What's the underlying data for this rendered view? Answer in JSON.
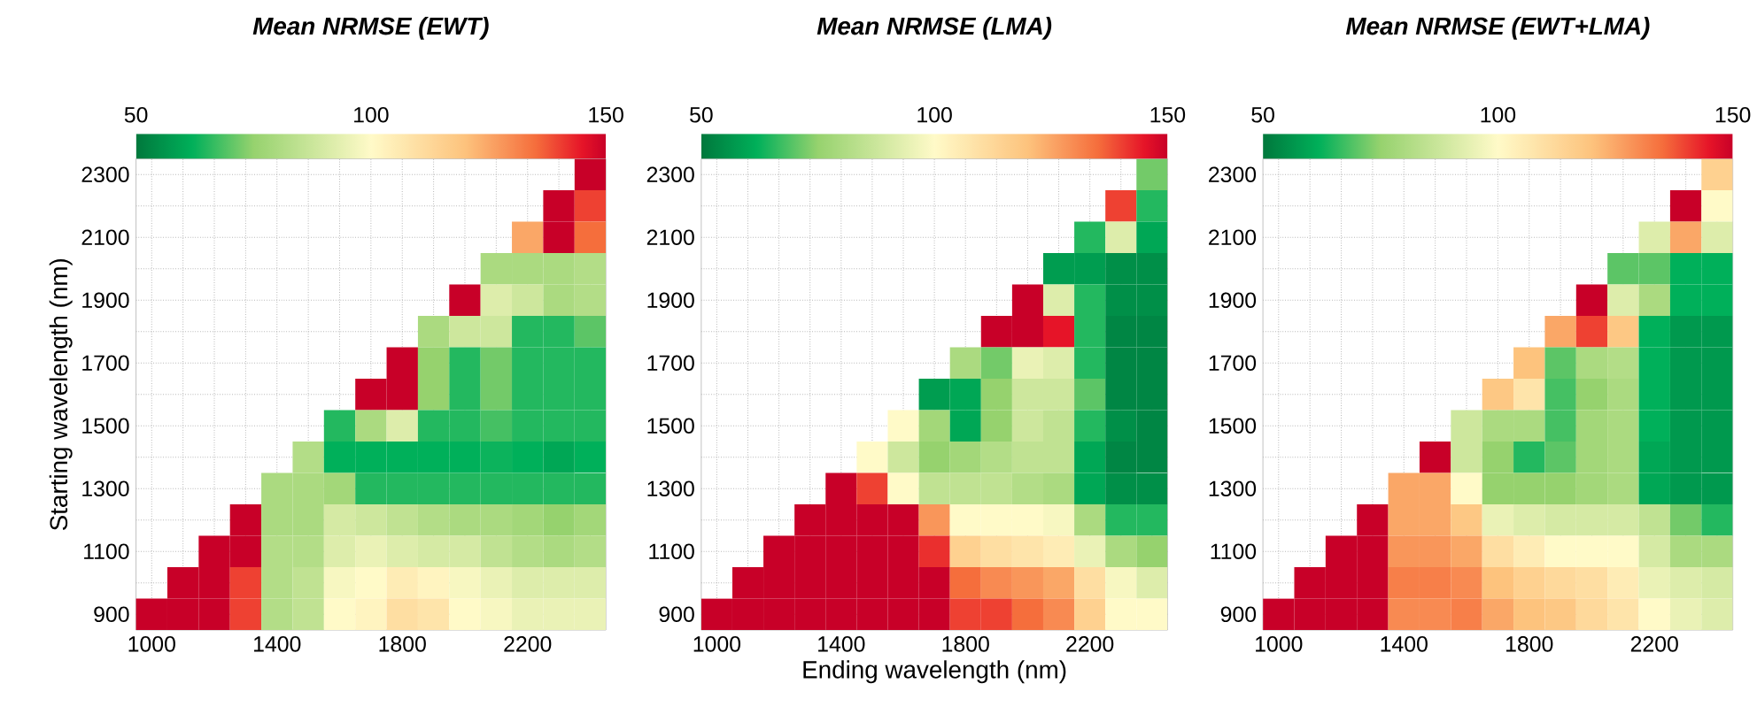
{
  "chart_data": [
    {
      "type": "heatmap",
      "title": "Mean NRMSE (EWT)",
      "ylabel": "Starting wavelength (nm)",
      "grid": true,
      "clim": [
        50,
        150
      ],
      "cticks": [
        50,
        100,
        150
      ],
      "categories": [
        "1000",
        null,
        null,
        null,
        "1400",
        null,
        null,
        null,
        "1800",
        null,
        null,
        null,
        "2200",
        null,
        null
      ],
      "y_categories": [
        "2300",
        null,
        "2100",
        null,
        "1900",
        null,
        "1700",
        null,
        "1500",
        null,
        "1300",
        null,
        "1100",
        null,
        "900"
      ],
      "cells": [
        [
          null,
          null,
          null,
          null,
          null,
          null,
          null,
          null,
          null,
          null,
          null,
          null,
          null,
          null,
          150
        ],
        [
          null,
          null,
          null,
          null,
          null,
          null,
          null,
          null,
          null,
          null,
          null,
          null,
          null,
          150,
          140
        ],
        [
          null,
          null,
          null,
          null,
          null,
          null,
          null,
          null,
          null,
          null,
          null,
          null,
          125,
          150,
          135
        ],
        [
          null,
          null,
          null,
          null,
          null,
          null,
          null,
          null,
          null,
          null,
          null,
          80,
          80,
          80,
          82
        ],
        [
          null,
          null,
          null,
          null,
          null,
          null,
          null,
          null,
          null,
          null,
          150,
          92,
          88,
          80,
          82
        ],
        [
          null,
          null,
          null,
          null,
          null,
          null,
          null,
          null,
          null,
          80,
          88,
          88,
          65,
          65,
          70
        ],
        [
          null,
          null,
          null,
          null,
          null,
          null,
          null,
          null,
          150,
          75,
          65,
          72,
          65,
          65,
          65
        ],
        [
          null,
          null,
          null,
          null,
          null,
          null,
          null,
          150,
          150,
          75,
          65,
          72,
          65,
          65,
          65
        ],
        [
          null,
          null,
          null,
          null,
          null,
          null,
          65,
          80,
          92,
          65,
          65,
          68,
          65,
          65,
          65
        ],
        [
          null,
          null,
          null,
          null,
          null,
          82,
          62,
          62,
          62,
          62,
          62,
          63,
          62,
          60,
          62
        ],
        [
          null,
          null,
          null,
          null,
          80,
          80,
          78,
          65,
          65,
          65,
          65,
          65,
          65,
          65,
          65
        ],
        [
          null,
          null,
          null,
          150,
          80,
          80,
          90,
          88,
          85,
          82,
          80,
          80,
          78,
          75,
          78
        ],
        [
          null,
          null,
          150,
          150,
          82,
          82,
          92,
          95,
          92,
          90,
          90,
          85,
          82,
          80,
          82
        ],
        [
          null,
          150,
          150,
          140,
          82,
          85,
          98,
          100,
          105,
          102,
          98,
          95,
          92,
          92,
          92
        ],
        [
          150,
          150,
          150,
          140,
          82,
          85,
          100,
          102,
          110,
          108,
          100,
          98,
          95,
          95,
          95
        ]
      ]
    },
    {
      "type": "heatmap",
      "title": "Mean NRMSE (LMA)",
      "xlabel": "Ending wavelength (nm)",
      "grid": true,
      "clim": [
        50,
        150
      ],
      "cticks": [
        50,
        100,
        150
      ],
      "categories": [
        "1000",
        null,
        null,
        null,
        "1400",
        null,
        null,
        null,
        "1800",
        null,
        null,
        null,
        "2200",
        null,
        null
      ],
      "y_categories": [
        "2300",
        null,
        "2100",
        null,
        "1900",
        null,
        "1700",
        null,
        "1500",
        null,
        "1300",
        null,
        "1100",
        null,
        "900"
      ],
      "cells": [
        [
          null,
          null,
          null,
          null,
          null,
          null,
          null,
          null,
          null,
          null,
          null,
          null,
          null,
          null,
          72
        ],
        [
          null,
          null,
          null,
          null,
          null,
          null,
          null,
          null,
          null,
          null,
          null,
          null,
          null,
          140,
          65
        ],
        [
          null,
          null,
          null,
          null,
          null,
          null,
          null,
          null,
          null,
          null,
          null,
          null,
          65,
          92,
          60
        ],
        [
          null,
          null,
          null,
          null,
          null,
          null,
          null,
          null,
          null,
          null,
          null,
          58,
          58,
          55,
          55
        ],
        [
          null,
          null,
          null,
          null,
          null,
          null,
          null,
          null,
          null,
          null,
          150,
          92,
          65,
          55,
          55
        ],
        [
          null,
          null,
          null,
          null,
          null,
          null,
          null,
          null,
          null,
          150,
          150,
          145,
          65,
          53,
          53
        ],
        [
          null,
          null,
          null,
          null,
          null,
          null,
          null,
          null,
          80,
          72,
          95,
          92,
          65,
          53,
          53
        ],
        [
          null,
          null,
          null,
          null,
          null,
          null,
          null,
          58,
          60,
          75,
          88,
          88,
          70,
          53,
          53
        ],
        [
          null,
          null,
          null,
          null,
          null,
          null,
          100,
          78,
          60,
          75,
          88,
          85,
          65,
          55,
          53
        ],
        [
          null,
          null,
          null,
          null,
          null,
          100,
          88,
          75,
          78,
          82,
          85,
          85,
          60,
          53,
          53
        ],
        [
          null,
          null,
          null,
          null,
          150,
          140,
          100,
          85,
          85,
          85,
          82,
          80,
          60,
          55,
          55
        ],
        [
          null,
          null,
          null,
          150,
          150,
          150,
          150,
          128,
          100,
          100,
          100,
          98,
          80,
          65,
          65
        ],
        [
          null,
          null,
          150,
          150,
          150,
          150,
          150,
          142,
          115,
          110,
          108,
          105,
          95,
          80,
          75
        ],
        [
          null,
          150,
          150,
          150,
          150,
          150,
          150,
          150,
          135,
          130,
          128,
          125,
          110,
          98,
          92
        ],
        [
          150,
          150,
          150,
          150,
          150,
          150,
          150,
          150,
          140,
          140,
          135,
          130,
          115,
          100,
          100
        ]
      ]
    },
    {
      "type": "heatmap",
      "title": "Mean NRMSE (EWT+LMA)",
      "grid": true,
      "clim": [
        50,
        150
      ],
      "cticks": [
        50,
        100,
        150
      ],
      "categories": [
        "1000",
        null,
        null,
        null,
        "1400",
        null,
        null,
        null,
        "1800",
        null,
        null,
        null,
        "2200",
        null,
        null
      ],
      "y_categories": [
        "2300",
        null,
        "2100",
        null,
        "1900",
        null,
        "1700",
        null,
        "1500",
        null,
        "1300",
        null,
        "1100",
        null,
        "900"
      ],
      "cells": [
        [
          null,
          null,
          null,
          null,
          null,
          null,
          null,
          null,
          null,
          null,
          null,
          null,
          null,
          null,
          115
        ],
        [
          null,
          null,
          null,
          null,
          null,
          null,
          null,
          null,
          null,
          null,
          null,
          null,
          null,
          150,
          100
        ],
        [
          null,
          null,
          null,
          null,
          null,
          null,
          null,
          null,
          null,
          null,
          null,
          null,
          92,
          125,
          92
        ],
        [
          null,
          null,
          null,
          null,
          null,
          null,
          null,
          null,
          null,
          null,
          null,
          70,
          70,
          62,
          62
        ],
        [
          null,
          null,
          null,
          null,
          null,
          null,
          null,
          null,
          null,
          null,
          150,
          92,
          80,
          62,
          62
        ],
        [
          null,
          null,
          null,
          null,
          null,
          null,
          null,
          null,
          null,
          125,
          140,
          118,
          62,
          57,
          57
        ],
        [
          null,
          null,
          null,
          null,
          null,
          null,
          null,
          null,
          120,
          70,
          80,
          82,
          62,
          57,
          57
        ],
        [
          null,
          null,
          null,
          null,
          null,
          null,
          null,
          118,
          108,
          68,
          75,
          80,
          62,
          57,
          57
        ],
        [
          null,
          null,
          null,
          null,
          null,
          null,
          88,
          80,
          80,
          68,
          78,
          80,
          62,
          57,
          57
        ],
        [
          null,
          null,
          null,
          null,
          null,
          150,
          88,
          75,
          65,
          70,
          78,
          80,
          60,
          57,
          57
        ],
        [
          null,
          null,
          null,
          null,
          125,
          125,
          100,
          75,
          75,
          75,
          78,
          80,
          60,
          57,
          57
        ],
        [
          null,
          null,
          null,
          150,
          125,
          125,
          118,
          95,
          92,
          90,
          90,
          90,
          85,
          72,
          65
        ],
        [
          null,
          null,
          150,
          150,
          128,
          128,
          125,
          110,
          105,
          100,
          100,
          100,
          90,
          80,
          80
        ],
        [
          null,
          150,
          150,
          150,
          132,
          132,
          130,
          120,
          115,
          112,
          110,
          105,
          95,
          92,
          90
        ],
        [
          150,
          150,
          150,
          150,
          130,
          130,
          132,
          125,
          120,
          118,
          112,
          108,
          100,
          95,
          92
        ]
      ]
    }
  ]
}
